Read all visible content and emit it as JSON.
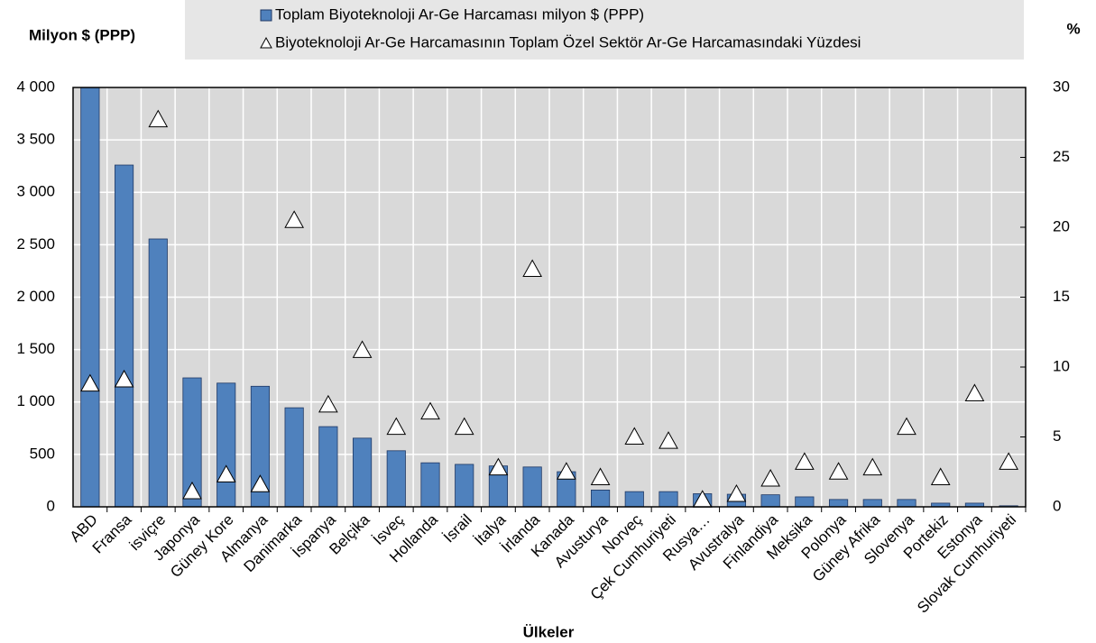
{
  "chart_data": {
    "type": "bar",
    "y_label": "Milyon $ (PPP)",
    "y2_label": "%",
    "x_label": "Ülkeler",
    "categories": [
      "ABD",
      "Fransa",
      "isviçre",
      "Japonya",
      "Güney Kore",
      "Almanya",
      "Danimarka",
      "İspanya",
      "Belçika",
      "İsveç",
      "Hollanda",
      "İsrail",
      "İtalya",
      "İrlanda",
      "Kanada",
      "Avusturya",
      "Norveç",
      "Çek Cumhuriyeti",
      "Rusya…",
      "Avustralya",
      "Finlandiya",
      "Meksika",
      "Polonya",
      "Güney Afrika",
      "Slovenya",
      "Portekiz",
      "Estonya",
      "Slovak Cumhuriyeti"
    ],
    "series": [
      {
        "name": "Toplam Biyoteknoloji Ar-Ge Harcaması milyon $ (PPP)",
        "color": "#4f81bd",
        "type": "bar",
        "values": [
          4000,
          3260,
          2555,
          1230,
          1180,
          1150,
          945,
          765,
          655,
          535,
          420,
          405,
          390,
          380,
          335,
          160,
          145,
          145,
          125,
          120,
          115,
          95,
          70,
          70,
          70,
          35,
          35,
          10
        ]
      },
      {
        "name": "Biyoteknoloji Ar-Ge Harcamasının Toplam Özel Sektör Ar-Ge Harcamasındaki Yüzdesi",
        "color": "#ffffff",
        "type": "scatter",
        "axis": "y2",
        "values": [
          8.8,
          9.1,
          27.7,
          1.1,
          2.3,
          1.6,
          20.5,
          7.3,
          11.2,
          5.7,
          6.8,
          5.7,
          2.8,
          17.0,
          2.5,
          2.1,
          5.0,
          4.7,
          0.5,
          0.9,
          2.0,
          3.2,
          2.5,
          2.8,
          5.7,
          2.1,
          8.1,
          3.2
        ]
      }
    ],
    "ylim": [
      0,
      4000
    ],
    "yticks": [
      0,
      500,
      {
        "value": 1000,
        "label": "1 000"
      },
      {
        "value": 1500,
        "label": "1 500"
      },
      {
        "value": 2000,
        "label": "2 000"
      },
      {
        "value": 2500,
        "label": "2 500"
      },
      {
        "value": 3000,
        "label": "3 000"
      },
      {
        "value": 3500,
        "label": "3 500"
      },
      {
        "value": 4000,
        "label": "4 000"
      }
    ],
    "y2lim": [
      0,
      30
    ],
    "y2ticks": [
      0,
      5,
      10,
      15,
      20,
      25,
      30
    ],
    "grid": true
  }
}
